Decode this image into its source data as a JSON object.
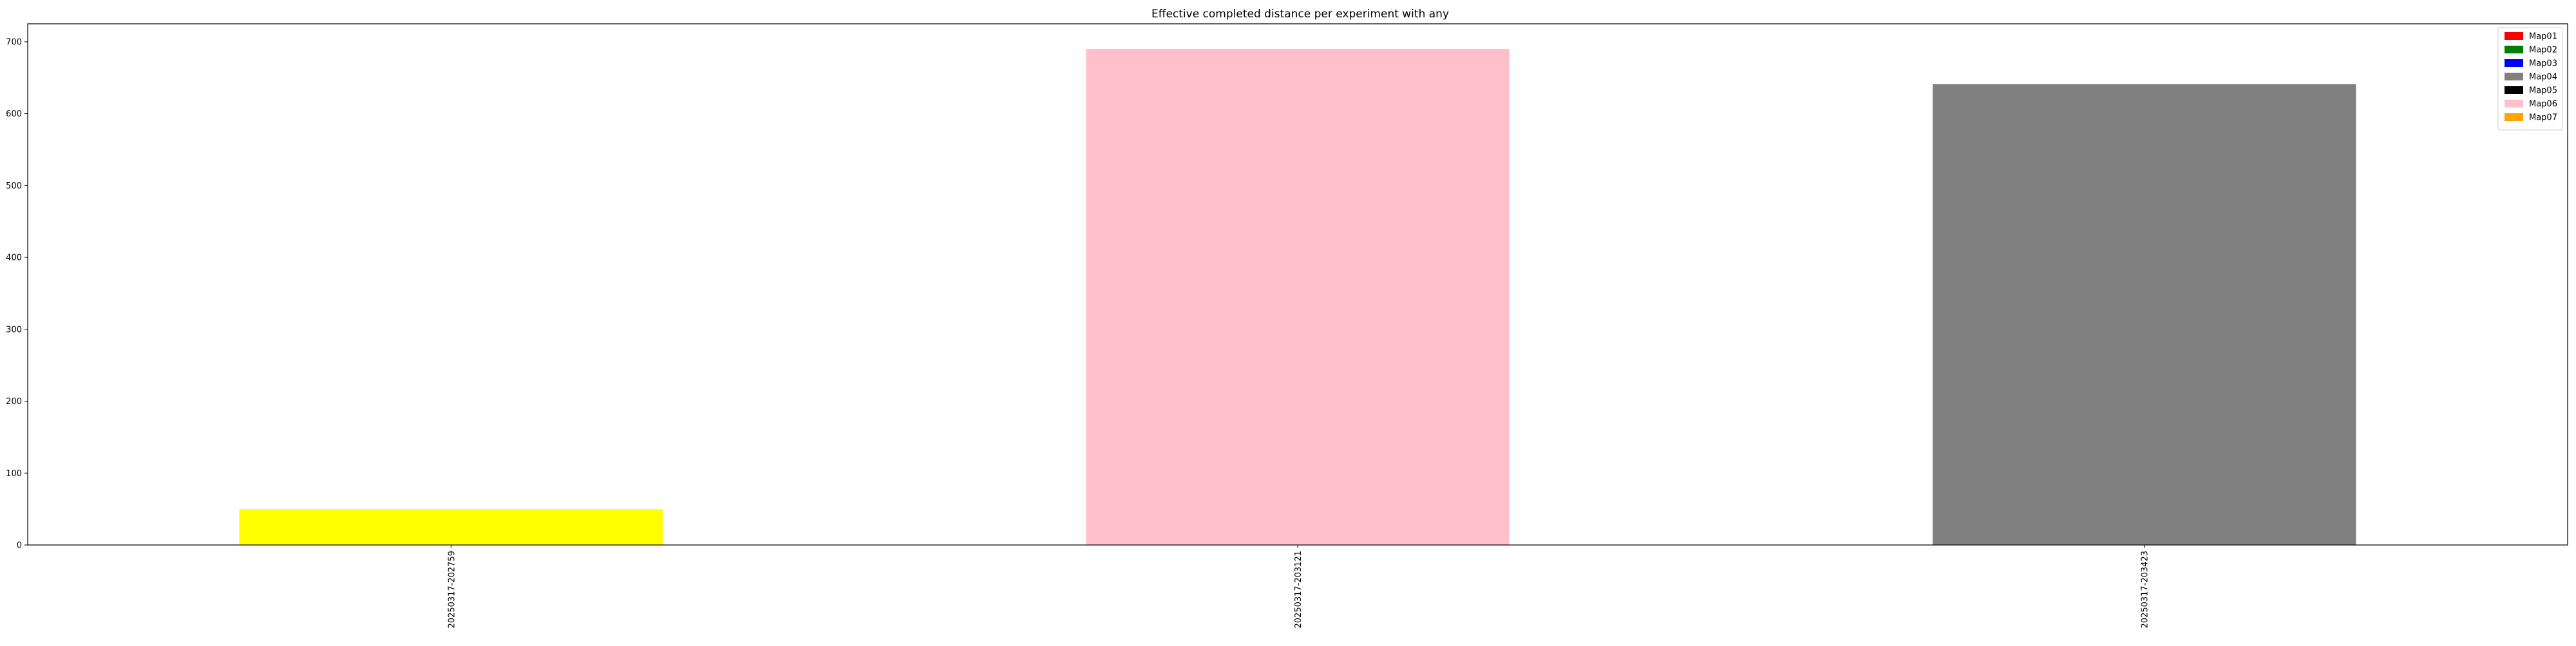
{
  "chart_data": {
    "type": "bar",
    "title": "Effective completed distance per experiment with any",
    "xlabel": "",
    "ylabel": "",
    "categories": [
      "20250317-202759",
      "20250317-203121",
      "20250317-203423"
    ],
    "values": [
      50,
      690,
      641
    ],
    "bar_colors": [
      "#ffff00",
      "#ffc0cb",
      "#808080"
    ],
    "ylim": [
      0,
      725
    ],
    "yticks": [
      0,
      100,
      200,
      300,
      400,
      500,
      600,
      700
    ],
    "grid": false,
    "legend_position": "top-right",
    "legend": [
      {
        "label": "Map01",
        "color": "#ff0000"
      },
      {
        "label": "Map02",
        "color": "#008000"
      },
      {
        "label": "Map03",
        "color": "#0000ff"
      },
      {
        "label": "Map04",
        "color": "#808080"
      },
      {
        "label": "Map05",
        "color": "#000000"
      },
      {
        "label": "Map06",
        "color": "#ffc0cb"
      },
      {
        "label": "Map07",
        "color": "#ffa500"
      }
    ]
  }
}
